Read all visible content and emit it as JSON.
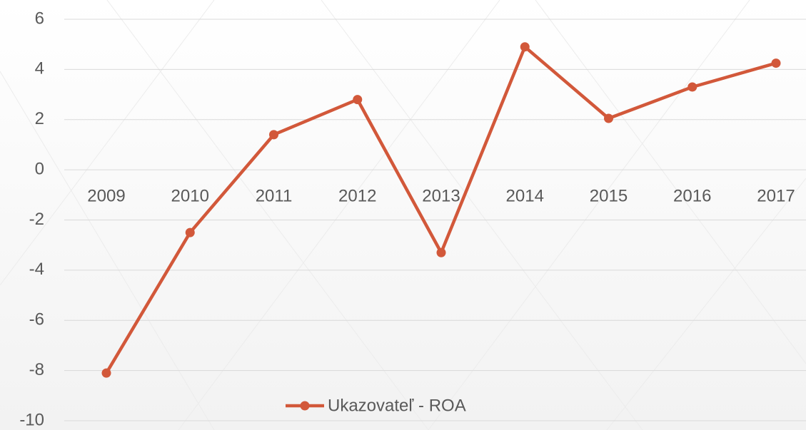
{
  "chart_data": {
    "type": "line",
    "categories": [
      "2009",
      "2010",
      "2011",
      "2012",
      "2013",
      "2014",
      "2015",
      "2016",
      "2017"
    ],
    "series": [
      {
        "name": "Ukazovateľ - ROA",
        "color": "#d2583a",
        "values": [
          -8.1,
          -2.5,
          1.4,
          2.8,
          -3.3,
          4.9,
          2.05,
          3.3,
          4.25
        ]
      }
    ],
    "ylim": [
      -10,
      6
    ],
    "yticks": [
      -10,
      -8,
      -6,
      -4,
      -2,
      0,
      2,
      4,
      6
    ],
    "grid": true,
    "legend": "bottom"
  }
}
